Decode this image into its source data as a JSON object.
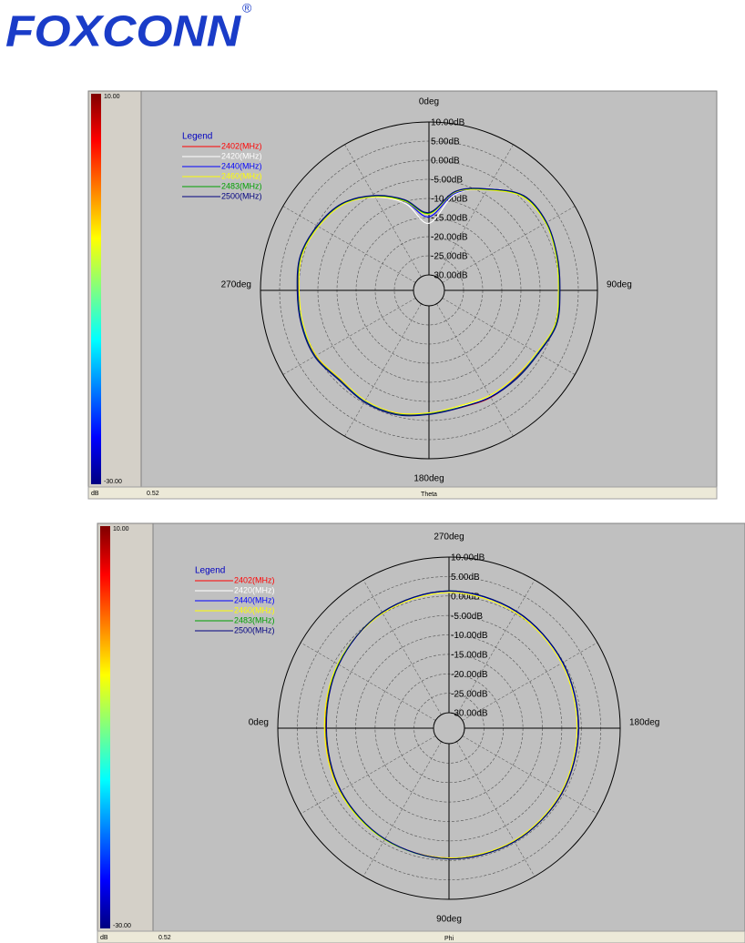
{
  "logo": "FOXCONN",
  "logo_mark": "®",
  "chart_data": [
    {
      "type": "polar",
      "axis_label": "Theta",
      "angle_at_top": 0,
      "clockwise": true,
      "theta": [
        0,
        15,
        30,
        45,
        60,
        75,
        90,
        105,
        120,
        135,
        150,
        165,
        180,
        195,
        210,
        225,
        240,
        255,
        270,
        285,
        300,
        315,
        330,
        345
      ],
      "angle_ticks": [
        {
          "value": 0,
          "label": "0deg"
        },
        {
          "value": 90,
          "label": "90deg"
        },
        {
          "value": 180,
          "label": "180deg"
        },
        {
          "value": 270,
          "label": "270deg"
        }
      ],
      "rlim": [
        -30,
        10
      ],
      "rticks": [
        {
          "value": 10,
          "label": "10.00dB"
        },
        {
          "value": 5,
          "label": "5.00dB"
        },
        {
          "value": 0,
          "label": "0.00dB"
        },
        {
          "value": -5,
          "label": "-5.00dB"
        },
        {
          "value": -10,
          "label": "-10.00dB"
        },
        {
          "value": -15,
          "label": "-15.00dB"
        },
        {
          "value": -20,
          "label": "-20.00dB"
        },
        {
          "value": -25,
          "label": "-25.00dB"
        },
        {
          "value": -30,
          "label": "-30.00dB"
        }
      ],
      "legend_title": "Legend",
      "series": [
        {
          "name": "2402(MHz)",
          "color": "#ff0000",
          "values": [
            -14.0,
            -7.4,
            -3.6,
            0.9,
            1.3,
            0.5,
            0.1,
            0.4,
            -1.1,
            -1.8,
            -1.7,
            -2.3,
            -1.9,
            -0.7,
            -0.4,
            -1.1,
            0.2,
            0.4,
            0.1,
            0.5,
            -0.6,
            -2.0,
            -5.5,
            -9.6
          ]
        },
        {
          "name": "2420(MHz)",
          "color": "#ffffff",
          "values": [
            -16.5,
            -8.2,
            -3.3,
            0.7,
            1.5,
            0.7,
            0.0,
            0.2,
            -1.3,
            -1.6,
            -2.0,
            -2.6,
            -1.7,
            -0.5,
            -0.6,
            -0.9,
            0.4,
            0.2,
            0.3,
            0.7,
            -0.4,
            -2.2,
            -5.9,
            -10.6
          ]
        },
        {
          "name": "2440(MHz)",
          "color": "#0000ff",
          "values": [
            -14.8,
            -7.8,
            -3.4,
            0.8,
            1.4,
            0.6,
            -0.1,
            0.3,
            -1.2,
            -1.7,
            -1.9,
            -2.4,
            -1.8,
            -0.6,
            -0.5,
            -1.0,
            0.3,
            0.3,
            0.2,
            0.6,
            -0.5,
            -2.1,
            -5.6,
            -10.0
          ]
        },
        {
          "name": "2460(MHz)",
          "color": "#ffff00",
          "values": [
            -14.1,
            -7.5,
            -3.7,
            0.6,
            1.2,
            0.4,
            -0.2,
            0.1,
            -1.5,
            -2.1,
            -2.3,
            -2.8,
            -2.0,
            -0.9,
            -0.8,
            -1.3,
            0.0,
            0.0,
            -0.1,
            0.4,
            -0.7,
            -2.3,
            -5.8,
            -9.9
          ]
        },
        {
          "name": "2483(MHz)",
          "color": "#00a000",
          "values": [
            -13.9,
            -7.3,
            -3.5,
            0.9,
            1.4,
            0.6,
            0.1,
            0.4,
            -1.1,
            -1.6,
            -1.8,
            -2.4,
            -1.7,
            -0.5,
            -0.4,
            -0.9,
            0.4,
            0.4,
            0.3,
            0.7,
            -0.4,
            -2.0,
            -5.5,
            -9.7
          ]
        },
        {
          "name": "2500(MHz)",
          "color": "#000080",
          "values": [
            -13.7,
            -7.2,
            -3.4,
            1.0,
            1.5,
            0.7,
            0.2,
            0.5,
            -1.0,
            -1.5,
            -1.8,
            -2.3,
            -1.6,
            -0.4,
            -0.3,
            -0.8,
            0.5,
            0.5,
            0.4,
            0.8,
            -0.3,
            -1.9,
            -5.4,
            -9.5
          ]
        }
      ],
      "colorbar": {
        "lim": [
          {
            "value": 10,
            "label": "10.00"
          },
          {
            "value": -30,
            "label": "-30.00"
          }
        ],
        "unit": "dB"
      },
      "scale_value": 0.52
    },
    {
      "type": "polar",
      "axis_label": "Phi",
      "angle_at_top": 270,
      "clockwise": false,
      "theta": [
        0,
        30,
        60,
        90,
        120,
        150,
        180,
        210,
        240,
        270,
        300,
        330
      ],
      "angle_ticks": [
        {
          "value": 270,
          "label": "270deg"
        },
        {
          "value": 180,
          "label": "180deg"
        },
        {
          "value": 90,
          "label": "90deg"
        },
        {
          "value": 0,
          "label": "0deg"
        }
      ],
      "rlim": [
        -30,
        10
      ],
      "rticks": [
        {
          "value": 10,
          "label": "10.00dB"
        },
        {
          "value": 5,
          "label": "5.00dB"
        },
        {
          "value": 0,
          "label": "0.00dB"
        },
        {
          "value": -5,
          "label": "-5.00dB"
        },
        {
          "value": -10,
          "label": "-10.00dB"
        },
        {
          "value": -15,
          "label": "-15.00dB"
        },
        {
          "value": -20,
          "label": "-20.00dB"
        },
        {
          "value": -25,
          "label": "-25.00dB"
        },
        {
          "value": -30,
          "label": "-30.00dB"
        }
      ],
      "legend_title": "Legend",
      "series": [
        {
          "name": "2402(MHz)",
          "color": "#ff0000",
          "values": [
            -2.3,
            -1.7,
            -1.0,
            -0.6,
            -0.4,
            -0.5,
            -0.7,
            -0.3,
            0.6,
            1.2,
            0.3,
            -1.1
          ]
        },
        {
          "name": "2420(MHz)",
          "color": "#ffffff",
          "values": [
            -2.5,
            -1.9,
            -1.1,
            -0.5,
            -0.3,
            -0.6,
            -0.9,
            -0.4,
            0.5,
            1.1,
            0.2,
            -1.3
          ]
        },
        {
          "name": "2440(MHz)",
          "color": "#0000ff",
          "values": [
            -2.4,
            -1.8,
            -1.0,
            -0.5,
            -0.4,
            -0.6,
            -0.8,
            -0.3,
            0.6,
            1.2,
            0.3,
            -1.2
          ]
        },
        {
          "name": "2460(MHz)",
          "color": "#ffff00",
          "values": [
            -2.0,
            -1.5,
            -0.9,
            -0.6,
            -0.6,
            -0.8,
            -1.1,
            -0.6,
            0.3,
            0.9,
            0.1,
            -1.0
          ]
        },
        {
          "name": "2483(MHz)",
          "color": "#00a000",
          "values": [
            -2.4,
            -1.8,
            -1.0,
            -0.4,
            -0.3,
            -0.5,
            -0.7,
            -0.2,
            0.7,
            1.3,
            0.4,
            -1.2
          ]
        },
        {
          "name": "2500(MHz)",
          "color": "#000080",
          "values": [
            -2.5,
            -1.9,
            -1.1,
            -0.4,
            -0.3,
            -0.5,
            -0.7,
            -0.2,
            0.7,
            1.3,
            0.4,
            -1.3
          ]
        }
      ],
      "colorbar": {
        "lim": [
          {
            "value": 10,
            "label": "10.00"
          },
          {
            "value": -30,
            "label": "-30.00"
          }
        ],
        "unit": "dB"
      },
      "scale_value": 0.52
    }
  ]
}
